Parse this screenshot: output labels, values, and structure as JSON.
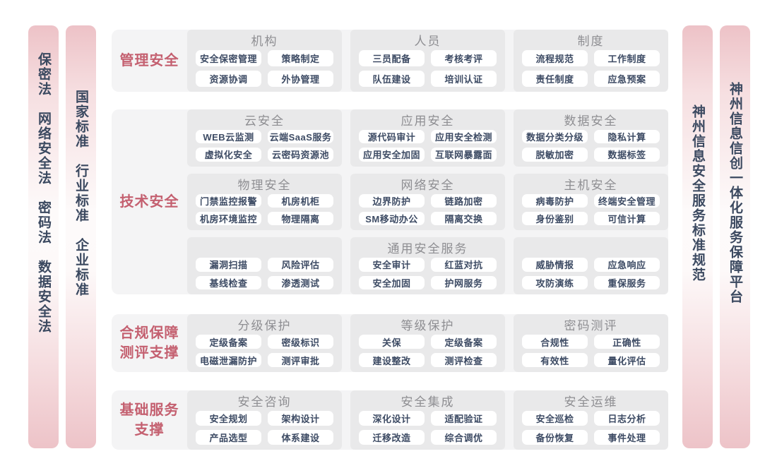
{
  "side_bars": {
    "left_outer": "保密法　网络安全法　密码法　数据安全法",
    "left_inner": "国家标准　行业标准　企业标准",
    "right_inner": "神州信息安全服务标准规范",
    "right_outer": "神州信息信创一体化服务保障平台"
  },
  "rows": [
    {
      "label_lines": [
        "管理安全"
      ],
      "tiers": [
        {
          "blocks": [
            {
              "title": "机构",
              "items": [
                "安全保密管理",
                "策略制定",
                "资源协调",
                "外协管理"
              ]
            },
            {
              "title": "人员",
              "items": [
                "三员配备",
                "考核考评",
                "队伍建设",
                "培训认证"
              ]
            },
            {
              "title": "制度",
              "items": [
                "流程规范",
                "工作制度",
                "责任制度",
                "应急预案"
              ]
            }
          ]
        }
      ]
    },
    {
      "label_lines": [
        "技术安全"
      ],
      "tiers": [
        {
          "blocks": [
            {
              "title": "云安全",
              "items": [
                "WEB云监测",
                "云端SaaS服务",
                "虚拟化安全",
                "云密码资源池"
              ]
            },
            {
              "title": "应用安全",
              "items": [
                "源代码审计",
                "应用安全检测",
                "应用安全加固",
                "互联网暴露面"
              ]
            },
            {
              "title": "数据安全",
              "items": [
                "数据分类分级",
                "隐私计算",
                "脱敏加密",
                "数据标签"
              ]
            }
          ]
        },
        {
          "blocks": [
            {
              "title": "物理安全",
              "items": [
                "门禁监控报警",
                "机房机柜",
                "机房环境监控",
                "物理隔离"
              ]
            },
            {
              "title": "网络安全",
              "items": [
                "边界防护",
                "链路加密",
                "SM移动办公",
                "隔离交换"
              ]
            },
            {
              "title": "主机安全",
              "items": [
                "病毒防护",
                "终端安全管理",
                "身份鉴别",
                "可信计算"
              ]
            }
          ]
        },
        {
          "blocks": [
            {
              "title": "",
              "items": [
                "漏洞扫描",
                "风险评估",
                "基线检查",
                "渗透测试"
              ]
            },
            {
              "title": "通用安全服务",
              "items": [
                "安全审计",
                "红蓝对抗",
                "安全加固",
                "护网服务"
              ]
            },
            {
              "title": "",
              "items": [
                "威胁情报",
                "应急响应",
                "攻防演练",
                "重保服务"
              ]
            }
          ]
        }
      ]
    },
    {
      "label_lines": [
        "合规保障",
        "测评支撑"
      ],
      "tiers": [
        {
          "blocks": [
            {
              "title": "分级保护",
              "items": [
                "定级备案",
                "密级标识",
                "电磁泄漏防护",
                "测评审批"
              ]
            },
            {
              "title": "等级保护",
              "items": [
                "关保",
                "定级备案",
                "建设整改",
                "测评检查"
              ]
            },
            {
              "title": "密码测评",
              "items": [
                "合规性",
                "正确性",
                "有效性",
                "量化评估"
              ]
            }
          ]
        }
      ]
    },
    {
      "label_lines": [
        "基础服务",
        "支撑"
      ],
      "tiers": [
        {
          "blocks": [
            {
              "title": "安全咨询",
              "items": [
                "安全规划",
                "架构设计",
                "产品选型",
                "体系建设"
              ]
            },
            {
              "title": "安全集成",
              "items": [
                "深化设计",
                "适配验证",
                "迁移改造",
                "综合调优"
              ]
            },
            {
              "title": "安全运维",
              "items": [
                "安全巡检",
                "日志分析",
                "备份恢复",
                "事件处理"
              ]
            }
          ]
        }
      ]
    }
  ],
  "colors": {
    "section_label": "#c46070",
    "bar_text": "#3b4960",
    "chip_text": "#3d4b64",
    "block_title": "#8e8e92",
    "card_bg": "#f4f4f5",
    "block_bg": "#e9e9ea",
    "bar_pink": "#edc2c7",
    "chip_bg": "#ffffff"
  }
}
